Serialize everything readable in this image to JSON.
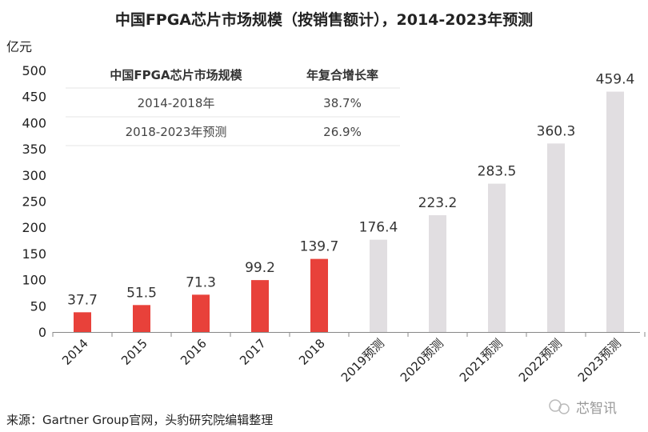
{
  "chart_data": {
    "type": "bar",
    "title": "中国FPGA芯片市场规模（按销售额计），2014-2023年预测",
    "ylabel": "亿元",
    "xlabel": "",
    "ylim": [
      0,
      500
    ],
    "yticks": [
      0,
      50,
      100,
      150,
      200,
      250,
      300,
      350,
      400,
      450,
      500
    ],
    "categories": [
      "2014",
      "2015",
      "2016",
      "2017",
      "2018",
      "2019预测",
      "2020预测",
      "2021预测",
      "2022预测",
      "2023预测"
    ],
    "values": [
      37.7,
      51.5,
      71.3,
      99.2,
      139.7,
      176.4,
      223.2,
      283.5,
      360.3,
      459.4
    ],
    "value_labels": [
      "37.7",
      "51.5",
      "71.3",
      "99.2",
      "139.7",
      "176.4",
      "223.2",
      "283.5",
      "360.3",
      "459.4"
    ],
    "colors": {
      "actual": "#e8413a",
      "forecast": "#e1dee1"
    },
    "forecast_from_index": 5,
    "grid": false,
    "inset_table": {
      "headers": [
        "中国FPGA芯片市场规模",
        "年复合增长率"
      ],
      "rows": [
        [
          "2014-2018年",
          "38.7%"
        ],
        [
          "2018-2023年预测",
          "26.9%"
        ]
      ]
    }
  },
  "source": "来源：Gartner Group官网，头豹研究院编辑整理",
  "watermark": "芯智讯"
}
